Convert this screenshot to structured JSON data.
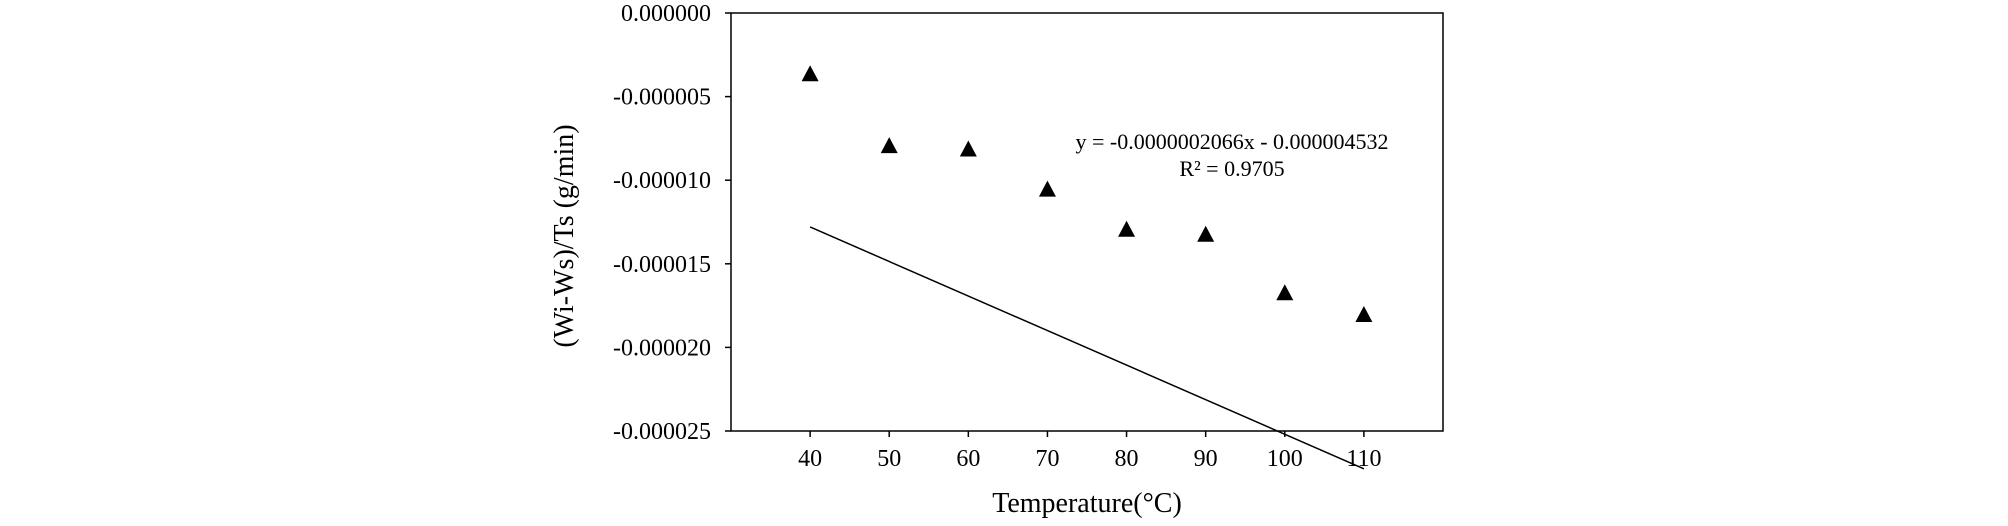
{
  "chart_data": {
    "type": "scatter",
    "xlabel": "Temperature(°C)",
    "ylabel": "(Wi-Ws)/Ts (g/min)",
    "xlim": [
      30,
      120
    ],
    "ylim": [
      -2.5e-05,
      0.0
    ],
    "x_ticks": [
      40,
      50,
      60,
      70,
      80,
      90,
      100,
      110
    ],
    "x_tick_labels": [
      "40",
      "50",
      "60",
      "70",
      "80",
      "90",
      "100",
      "110"
    ],
    "y_ticks": [
      0.0,
      -5e-06,
      -1e-05,
      -1.5e-05,
      -2e-05,
      -2.5e-05
    ],
    "y_tick_labels": [
      "0.000000",
      "-0.000005",
      "-0.000010",
      "-0.000015",
      "-0.000020",
      "-0.000025"
    ],
    "grid": false,
    "legend": "none",
    "marker": "triangle",
    "marker_color": "#000000",
    "series": [
      {
        "x": [
          40,
          50,
          60,
          70,
          80,
          90,
          100,
          110
        ],
        "y": [
          -3.7e-06,
          -8e-06,
          -8.2e-06,
          -1.06e-05,
          -1.3e-05,
          -1.33e-05,
          -1.68e-05,
          -1.81e-05
        ]
      }
    ],
    "trendline": {
      "type": "linear",
      "slope": -2.066e-07,
      "intercept": -4.532e-06,
      "x_range": [
        40,
        110
      ],
      "color": "#000000"
    },
    "annotations": {
      "equation": "y = -0.0000002066x - 0.000004532",
      "r_squared": "R² = 0.9705"
    }
  }
}
